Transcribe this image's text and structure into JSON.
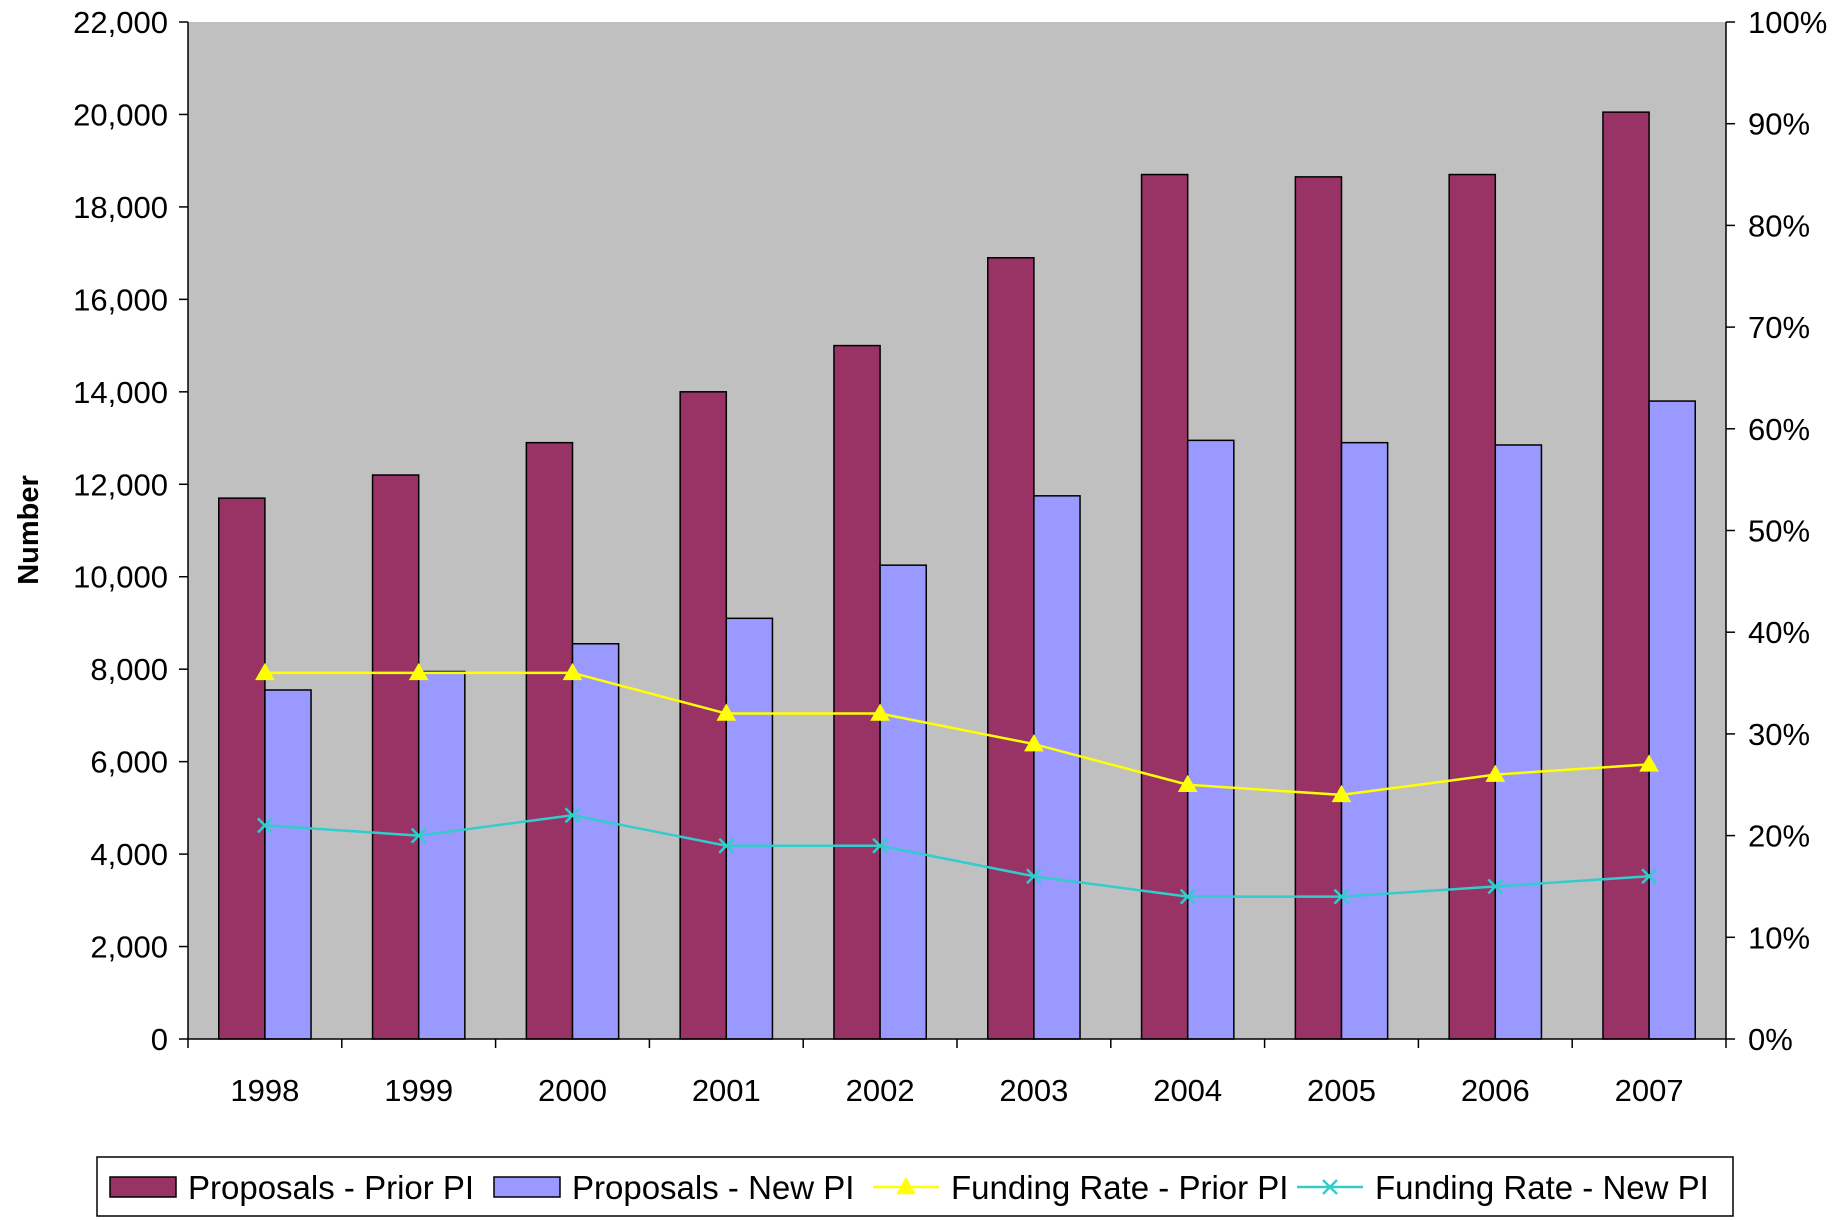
{
  "chart_data": {
    "type": "bar",
    "categories": [
      "1998",
      "1999",
      "2000",
      "2001",
      "2002",
      "2003",
      "2004",
      "2005",
      "2006",
      "2007"
    ],
    "series": [
      {
        "name": "Proposals - Prior PI",
        "kind": "bar",
        "axis": "left",
        "color": "#993366",
        "values": [
          11700,
          12200,
          12900,
          14000,
          15000,
          16900,
          18700,
          18650,
          18700,
          20050
        ]
      },
      {
        "name": "Proposals - New PI",
        "kind": "bar",
        "axis": "left",
        "color": "#9999FF",
        "values": [
          7550,
          7950,
          8550,
          9100,
          10250,
          11750,
          12950,
          12900,
          12850,
          13800
        ]
      },
      {
        "name": "Funding Rate - Prior PI",
        "kind": "line",
        "axis": "right",
        "color": "#FFFF00",
        "marker": "triangle",
        "values": [
          36,
          36,
          36,
          32,
          32,
          29,
          25,
          24,
          26,
          27
        ]
      },
      {
        "name": "Funding Rate - New PI",
        "kind": "line",
        "axis": "right",
        "color": "#33CCCC",
        "marker": "x",
        "values": [
          21,
          20,
          22,
          19,
          19,
          16,
          14,
          14,
          15,
          16
        ]
      }
    ],
    "ylabel": "Number",
    "ylim": [
      0,
      22000
    ],
    "yticks": [
      "0",
      "2,000",
      "4,000",
      "6,000",
      "8,000",
      "10,000",
      "12,000",
      "14,000",
      "16,000",
      "18,000",
      "20,000",
      "22,000"
    ],
    "y2lim": [
      0,
      100
    ],
    "y2ticks": [
      "0%",
      "10%",
      "20%",
      "30%",
      "40%",
      "50%",
      "60%",
      "70%",
      "80%",
      "90%",
      "100%"
    ],
    "plot_background": "#C0C0C0",
    "grid": false,
    "legend_position": "bottom"
  }
}
